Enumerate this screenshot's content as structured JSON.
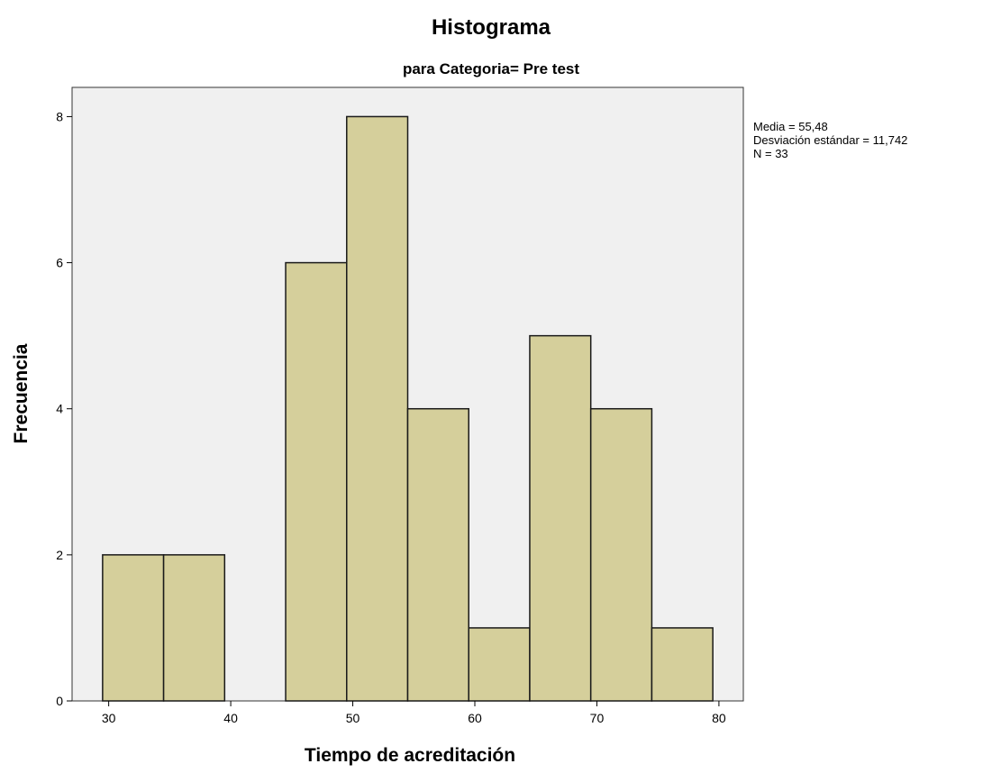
{
  "chart_data": {
    "type": "bar",
    "title": "Histograma",
    "subtitle": "para Categoria= Pre test",
    "xlabel": "Tiempo de acreditación",
    "ylabel": "Frecuencia",
    "xlim": [
      27,
      82
    ],
    "ylim": [
      0,
      8.4
    ],
    "x_ticks": [
      30,
      40,
      50,
      60,
      70,
      80
    ],
    "y_ticks": [
      0,
      2,
      4,
      6,
      8
    ],
    "bins": [
      {
        "start": 29.5,
        "end": 34.5,
        "value": 2
      },
      {
        "start": 34.5,
        "end": 39.5,
        "value": 2
      },
      {
        "start": 44.5,
        "end": 49.5,
        "value": 6
      },
      {
        "start": 49.5,
        "end": 54.5,
        "value": 8
      },
      {
        "start": 54.5,
        "end": 59.5,
        "value": 4
      },
      {
        "start": 59.5,
        "end": 64.5,
        "value": 1
      },
      {
        "start": 64.5,
        "end": 69.5,
        "value": 5
      },
      {
        "start": 69.5,
        "end": 74.5,
        "value": 4
      },
      {
        "start": 74.5,
        "end": 79.5,
        "value": 1
      }
    ],
    "grid": false,
    "background_color": "#f0f0f0",
    "bar_color": "#d5cf9b",
    "stats": [
      "Media = 55,48",
      "Desviación estándar = 11,742",
      "N = 33"
    ]
  }
}
